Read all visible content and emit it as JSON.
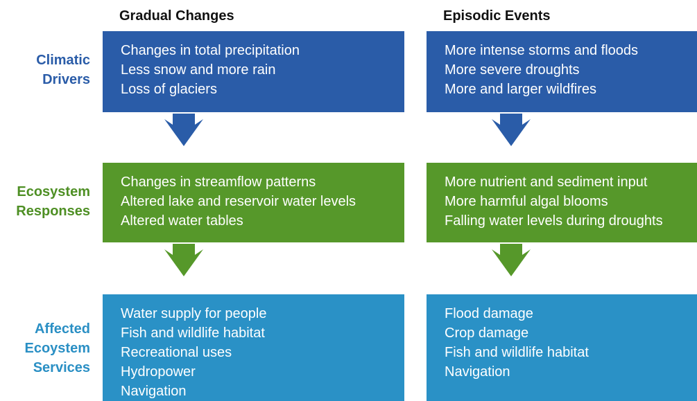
{
  "columns": [
    "Gradual Changes",
    "Episodic Events"
  ],
  "rows": [
    {
      "label": [
        "Climatic",
        "Drivers"
      ],
      "cells": [
        [
          "Changes in total precipitation",
          "Less snow and more rain",
          "Loss of glaciers"
        ],
        [
          "More intense storms and floods",
          "More severe droughts",
          "More and larger wildfires"
        ]
      ]
    },
    {
      "label": [
        "Ecosystem",
        "Responses"
      ],
      "cells": [
        [
          "Changes in streamflow patterns",
          "Altered lake and reservoir water levels",
          "Altered water tables"
        ],
        [
          "More nutrient and sediment input",
          "More harmful algal blooms",
          "Falling water levels during droughts"
        ]
      ]
    },
    {
      "label": [
        "Affected",
        "Ecoystem",
        "Services"
      ],
      "cells": [
        [
          "Water supply for people",
          "Fish and wildlife habitat",
          "Recreational uses",
          "Hydropower",
          "Navigation"
        ],
        [
          "Flood damage",
          "Crop damage",
          "Fish and wildlife habitat",
          "Navigation"
        ]
      ]
    }
  ]
}
